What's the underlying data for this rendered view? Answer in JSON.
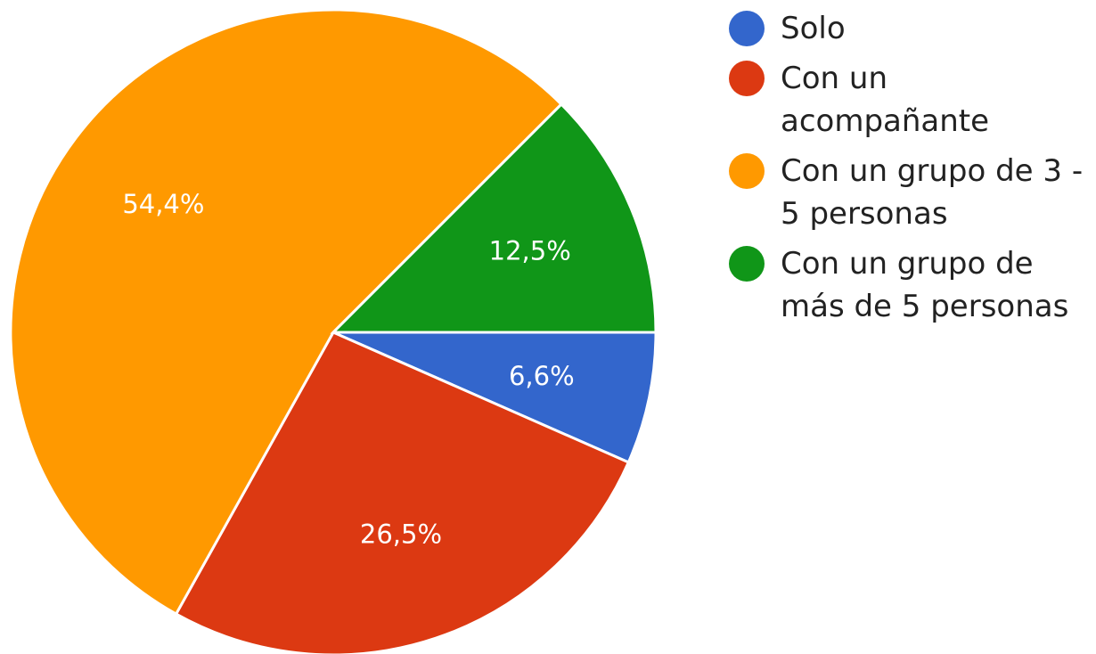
{
  "chart_data": {
    "type": "pie",
    "slices": [
      {
        "name": "Solo",
        "value": 6.6,
        "label": "6,6%",
        "color": "#3366cc"
      },
      {
        "name": "Con un acompañante",
        "value": 26.5,
        "label": "26,5%",
        "color": "#dc3912"
      },
      {
        "name": "Con un grupo de 3 - 5 personas",
        "value": 54.4,
        "label": "54,4%",
        "color": "#ff9900"
      },
      {
        "name": "Con un grupo de más de 5 personas",
        "value": 12.5,
        "label": "12,5%",
        "color": "#109618"
      }
    ],
    "start_direction": "3 o'clock",
    "direction": "clockwise",
    "legend_position": "right"
  },
  "legend": [
    {
      "line1": "Solo",
      "line2": ""
    },
    {
      "line1": "Con un",
      "line2": "acompañante"
    },
    {
      "line1": "Con un grupo de 3 -",
      "line2": "5 personas"
    },
    {
      "line1": "Con un grupo de",
      "line2": "más de 5 personas"
    }
  ]
}
